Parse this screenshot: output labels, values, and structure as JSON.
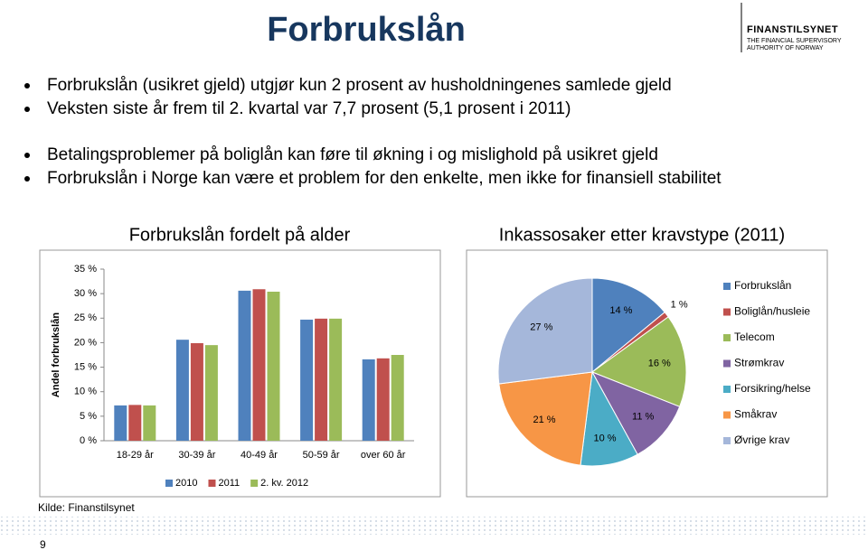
{
  "title": "Forbrukslån",
  "logo": {
    "name": "FINANSTILSYNET",
    "line1": "THE FINANCIAL SUPERVISORY",
    "line2": "AUTHORITY OF NORWAY"
  },
  "bullets": [
    "Forbrukslån (usikret gjeld) utgjør kun 2 prosent av husholdningenes samlede gjeld",
    "Veksten siste år frem til 2. kvartal var 7,7 prosent (5,1 prosent i 2011)",
    "Betalingsproblemer på boliglån kan føre til økning i og mislighold på usikret gjeld",
    "Forbrukslån i Norge kan være et problem for den enkelte, men ikke for finansiell stabilitet"
  ],
  "chart_data": [
    {
      "type": "bar",
      "title": "Forbrukslån fordelt på alder",
      "ylabel": "Andel forbrukslån",
      "categories": [
        "18-29 år",
        "30-39 år",
        "40-49 år",
        "50-59 år",
        "over 60 år"
      ],
      "series": [
        {
          "name": "2010",
          "color": "#4f81bd",
          "values": [
            7.2,
            20.6,
            30.6,
            24.7,
            16.6
          ]
        },
        {
          "name": "2011",
          "color": "#c0504d",
          "values": [
            7.3,
            19.9,
            30.9,
            24.9,
            16.8
          ]
        },
        {
          "name": "2. kv. 2012",
          "color": "#9bbb59",
          "values": [
            7.2,
            19.5,
            30.4,
            24.9,
            17.5
          ]
        }
      ],
      "ylim": [
        0,
        35
      ],
      "yticks": [
        {
          "value": 0,
          "label": "0 %"
        },
        {
          "value": 5,
          "label": "5 %"
        },
        {
          "value": 10,
          "label": "10 %"
        },
        {
          "value": 15,
          "label": "15 %"
        },
        {
          "value": 20,
          "label": "20 %"
        },
        {
          "value": 25,
          "label": "25 %"
        },
        {
          "value": 30,
          "label": "30 %"
        },
        {
          "value": 35,
          "label": "35 %"
        }
      ],
      "grid": false,
      "legend": "bottom"
    },
    {
      "type": "pie",
      "title": "Inkassosaker etter kravstype (2011)",
      "categories": [
        "Forbrukslån",
        "Boliglån/husleie",
        "Telecom",
        "Strømkrav",
        "Forsikring/helse",
        "Småkrav",
        "Øvrige krav"
      ],
      "values": [
        14,
        1,
        16,
        11,
        10,
        21,
        27
      ],
      "value_labels": [
        "14 %",
        "1 %",
        "16 %",
        "11 %",
        "10 %",
        "21 %",
        "27 %"
      ],
      "colors": [
        "#4f81bd",
        "#c0504d",
        "#9bbb59",
        "#8064a2",
        "#4bacc6",
        "#f79646",
        "#a5b7da"
      ],
      "legend": "right"
    }
  ],
  "source": "Kilde: Finanstilsynet",
  "page_number": "9"
}
